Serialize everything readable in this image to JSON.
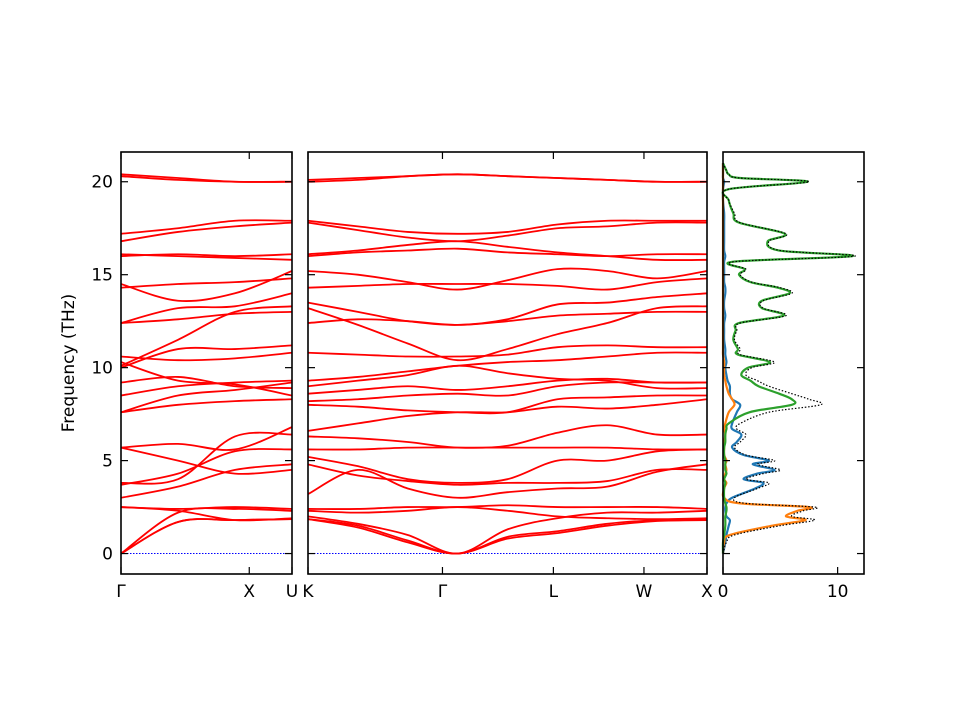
{
  "chart_data": {
    "type": "line",
    "ylabel": "Frequency (THz)",
    "ylim": [
      -1.1,
      21.6
    ],
    "yticks": [
      0,
      5,
      10,
      15,
      20
    ],
    "panels": [
      {
        "name": "band-segment-1",
        "x_ticks": [
          {
            "pos": 0,
            "label": "Γ"
          },
          {
            "pos": 0.75,
            "label": "X"
          },
          {
            "pos": 1,
            "label": "U"
          }
        ],
        "bands": [
          [
            0,
            1.7,
            1.8,
            1.85
          ],
          [
            0,
            1.7,
            1.8,
            1.85
          ],
          [
            0,
            2.2,
            2.4,
            2.3
          ],
          [
            2.5,
            2.3,
            1.8,
            1.9
          ],
          [
            2.5,
            2.4,
            2.5,
            2.4
          ],
          [
            3.0,
            3.6,
            4.5,
            4.8
          ],
          [
            3.7,
            4.3,
            5.5,
            5.6
          ],
          [
            3.8,
            4.0,
            6.3,
            6.4
          ],
          [
            5.7,
            5.0,
            4.3,
            4.5
          ],
          [
            5.7,
            5.9,
            5.6,
            6.8
          ],
          [
            7.6,
            8.5,
            8.8,
            9.2
          ],
          [
            7.6,
            8.0,
            8.2,
            8.3
          ],
          [
            8.5,
            9.0,
            9.2,
            9.3
          ],
          [
            9.2,
            9.5,
            9.0,
            8.9
          ],
          [
            10.0,
            11.0,
            11.0,
            11.2
          ],
          [
            10.3,
            9.3,
            9.1,
            8.5
          ],
          [
            10.6,
            10.4,
            10.5,
            10.8
          ],
          [
            10.1,
            11.5,
            13.0,
            13.3
          ],
          [
            12.4,
            12.6,
            12.9,
            13.0
          ],
          [
            12.4,
            13.2,
            13.3,
            14.0
          ],
          [
            14.3,
            14.5,
            14.6,
            14.8
          ],
          [
            14.5,
            13.6,
            14.0,
            15.2
          ],
          [
            16.0,
            16.1,
            16.0,
            16.1
          ],
          [
            16.1,
            16.0,
            15.9,
            15.8
          ],
          [
            16.8,
            17.3,
            17.6,
            17.8
          ],
          [
            17.2,
            17.5,
            17.9,
            17.9
          ],
          [
            20.3,
            20.1,
            20.0,
            20.0
          ],
          [
            20.4,
            20.2,
            20.0,
            20.0
          ]
        ]
      },
      {
        "name": "band-segment-2",
        "x_ticks": [
          {
            "pos": 0,
            "label": "K"
          },
          {
            "pos": 0.337,
            "label": "Γ"
          },
          {
            "pos": 0.615,
            "label": "L"
          },
          {
            "pos": 0.842,
            "label": "W"
          },
          {
            "pos": 1,
            "label": "X"
          }
        ],
        "bands": [
          [
            1.85,
            1.4,
            0.6,
            0,
            0.8,
            1.1,
            1.5,
            1.75,
            1.8
          ],
          [
            1.85,
            1.5,
            0.7,
            0,
            0.9,
            1.2,
            1.6,
            1.8,
            1.85
          ],
          [
            2.0,
            1.6,
            1.0,
            0,
            1.3,
            1.9,
            2.2,
            2.2,
            2.3
          ],
          [
            2.3,
            2.2,
            2.3,
            2.5,
            2.3,
            2.0,
            1.9,
            1.85,
            1.9
          ],
          [
            2.4,
            2.4,
            2.5,
            2.5,
            2.6,
            2.5,
            2.5,
            2.5,
            2.4
          ],
          [
            3.2,
            4.5,
            3.5,
            3.0,
            3.3,
            3.5,
            3.6,
            4.4,
            4.8
          ],
          [
            4.8,
            4.2,
            3.9,
            3.7,
            3.8,
            3.8,
            3.9,
            4.5,
            4.5
          ],
          [
            5.2,
            4.7,
            4.0,
            3.8,
            4.0,
            5.0,
            5.0,
            5.5,
            5.6
          ],
          [
            5.6,
            5.6,
            5.7,
            5.7,
            5.7,
            5.7,
            5.7,
            5.6,
            5.6
          ],
          [
            6.3,
            6.2,
            6.0,
            5.7,
            5.8,
            6.5,
            6.9,
            6.4,
            6.4
          ],
          [
            6.6,
            7.0,
            7.4,
            7.6,
            7.6,
            7.9,
            7.8,
            8.0,
            8.3
          ],
          [
            8.0,
            7.9,
            7.7,
            7.6,
            7.6,
            8.3,
            8.4,
            8.5,
            8.5
          ],
          [
            8.2,
            8.3,
            8.5,
            8.6,
            8.5,
            9.0,
            9.2,
            9.2,
            9.2
          ],
          [
            8.6,
            8.8,
            9.0,
            8.8,
            9.0,
            9.3,
            9.4,
            9.2,
            9.2
          ],
          [
            9.0,
            9.3,
            9.6,
            10.1,
            9.7,
            9.4,
            9.3,
            8.9,
            8.9
          ],
          [
            9.3,
            9.5,
            9.8,
            10.1,
            10.3,
            10.4,
            10.6,
            10.8,
            10.8
          ],
          [
            10.8,
            10.7,
            10.6,
            10.6,
            10.7,
            11.1,
            11.2,
            11.1,
            11.1
          ],
          [
            13.2,
            12.3,
            11.3,
            10.4,
            11.0,
            11.8,
            12.4,
            13.2,
            13.3
          ],
          [
            12.4,
            12.6,
            12.5,
            12.3,
            12.5,
            12.8,
            12.9,
            13.0,
            13.0
          ],
          [
            13.5,
            13.0,
            12.5,
            12.3,
            12.6,
            13.4,
            13.5,
            13.8,
            14.0
          ],
          [
            14.3,
            14.4,
            14.5,
            14.5,
            14.5,
            14.4,
            14.2,
            14.6,
            14.8
          ],
          [
            15.2,
            15.0,
            14.6,
            14.2,
            14.7,
            15.3,
            15.2,
            14.8,
            15.2
          ],
          [
            16.0,
            16.2,
            16.3,
            16.4,
            16.2,
            16.1,
            16.0,
            16.1,
            16.1
          ],
          [
            16.1,
            16.3,
            16.6,
            16.8,
            16.5,
            16.2,
            16.0,
            15.8,
            15.8
          ],
          [
            17.8,
            17.4,
            17.0,
            16.8,
            17.1,
            17.5,
            17.6,
            17.8,
            17.8
          ],
          [
            17.9,
            17.6,
            17.3,
            17.2,
            17.3,
            17.7,
            17.9,
            17.9,
            17.9
          ],
          [
            20.1,
            20.2,
            20.3,
            20.4,
            20.3,
            20.2,
            20.1,
            20.0,
            20.0
          ],
          [
            20.0,
            20.1,
            20.3,
            20.4,
            20.3,
            20.2,
            20.1,
            20.0,
            20.0
          ]
        ]
      }
    ],
    "dos": {
      "name": "density-of-states",
      "xlim": [
        0,
        12.3
      ],
      "x_ticks": [
        0,
        10
      ],
      "freq": [
        0,
        0.6,
        1.0,
        1.5,
        1.8,
        2.0,
        2.3,
        2.5,
        2.7,
        3.0,
        3.5,
        3.8,
        4.0,
        4.3,
        4.5,
        4.8,
        5.0,
        5.3,
        5.7,
        6.0,
        6.4,
        6.7,
        7.0,
        7.6,
        8.0,
        8.3,
        8.6,
        9.0,
        9.3,
        9.6,
        10.0,
        10.3,
        10.7,
        11.0,
        11.5,
        12.0,
        12.4,
        12.8,
        13.2,
        13.6,
        14.0,
        14.3,
        14.6,
        15.0,
        15.3,
        15.7,
        16.0,
        16.3,
        16.8,
        17.2,
        17.8,
        18.3,
        19.0,
        19.6,
        20.0,
        20.2,
        20.4,
        20.6,
        21.0
      ],
      "total": [
        0,
        0.3,
        1.0,
        5.0,
        8.0,
        6.0,
        7.0,
        8.0,
        2.0,
        1.0,
        3.0,
        4.0,
        2.0,
        3.5,
        5.0,
        3.0,
        4.5,
        2.0,
        1.0,
        1.5,
        2.0,
        1.2,
        1.5,
        4.0,
        8.5,
        7.5,
        6.0,
        4.0,
        3.0,
        2.0,
        2.5,
        4.5,
        1.5,
        1.5,
        1.0,
        1.2,
        1.5,
        5.5,
        3.5,
        3.5,
        6.0,
        5.0,
        2.5,
        1.5,
        2.0,
        1.0,
        11.5,
        5.0,
        4.0,
        5.5,
        1.5,
        1.0,
        0.5,
        0.5,
        7.5,
        1.5,
        0.5,
        0.3,
        0
      ],
      "partials": [
        {
          "color": "#1f77b4",
          "values": [
            0,
            0.2,
            0.3,
            0.5,
            0.6,
            0.3,
            0.2,
            0.2,
            0.3,
            0.8,
            2.8,
            3.5,
            1.8,
            3.0,
            4.5,
            2.6,
            4.0,
            1.8,
            0.8,
            1.2,
            1.6,
            0.8,
            0.8,
            1.2,
            1.5,
            0.8,
            0.6,
            0.6,
            0.4,
            0.3,
            0.2,
            0.3,
            0.2,
            0.2,
            0.1,
            0.1,
            0.1,
            0.2,
            0.1,
            0.1,
            0.2,
            0.2,
            0.1,
            0.1,
            0.1,
            0.1,
            0.2,
            0.1,
            0.1,
            0.1,
            0.1,
            0.1,
            0,
            0,
            0.1,
            0,
            0,
            0,
            0
          ]
        },
        {
          "color": "#ff7f0e",
          "values": [
            0,
            0.1,
            0.6,
            4.3,
            7.2,
            5.5,
            6.5,
            7.5,
            1.5,
            0.1,
            0.1,
            0.3,
            0.1,
            0.2,
            0.3,
            0.2,
            0.3,
            0.1,
            0.1,
            0.1,
            0.2,
            0.1,
            0.2,
            0.5,
            1.0,
            0.8,
            0.5,
            0.3,
            0.2,
            0.1,
            0.1,
            0.1,
            0,
            0,
            0,
            0,
            0,
            0,
            0,
            0,
            0,
            0,
            0,
            0,
            0,
            0,
            0,
            0,
            0,
            0,
            0,
            0,
            0,
            0,
            0,
            0,
            0,
            0,
            0
          ]
        },
        {
          "color": "#2ca02c",
          "values": [
            0,
            0,
            0.1,
            0.2,
            0.2,
            0.2,
            0.3,
            0.3,
            0.2,
            0.1,
            0.1,
            0.2,
            0.1,
            0.3,
            0.2,
            0.2,
            0.2,
            0.1,
            0.1,
            0.2,
            0.2,
            0.3,
            0.5,
            2.3,
            6.0,
            6.0,
            4.9,
            3.1,
            2.4,
            1.6,
            2.2,
            4.1,
            1.3,
            1.3,
            0.9,
            1.1,
            1.4,
            5.3,
            3.4,
            3.4,
            5.8,
            4.8,
            2.4,
            1.4,
            1.9,
            0.9,
            11.3,
            4.9,
            3.9,
            5.4,
            1.4,
            0.9,
            0.5,
            0.5,
            7.4,
            1.5,
            0.5,
            0.3,
            0
          ]
        }
      ]
    }
  }
}
